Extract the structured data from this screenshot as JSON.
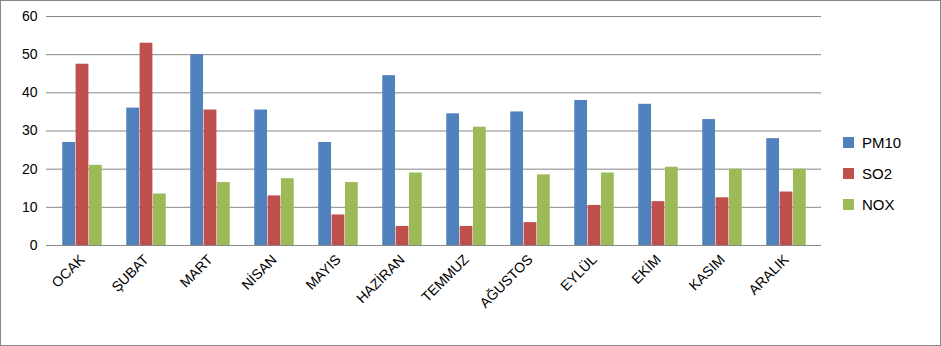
{
  "chart_data": {
    "type": "bar",
    "categories": [
      "OCAK",
      "ŞUBAT",
      "MART",
      "NİSAN",
      "MAYIS",
      "HAZİRAN",
      "TEMMUZ",
      "AĞUSTOS",
      "EYLÜL",
      "EKİM",
      "KASIM",
      "ARALIK"
    ],
    "series": [
      {
        "name": "PM10",
        "color": "#4F81BD",
        "values": [
          27,
          36,
          50,
          35.5,
          27,
          44.5,
          34.5,
          35,
          38,
          37,
          33,
          28
        ]
      },
      {
        "name": "SO2",
        "color": "#C0504D",
        "values": [
          47.5,
          53,
          35.5,
          13,
          8,
          5,
          5,
          6,
          10.5,
          11.5,
          12.5,
          14
        ]
      },
      {
        "name": "NOX",
        "color": "#9BBB59",
        "values": [
          21,
          13.5,
          16.5,
          17.5,
          16.5,
          19,
          31,
          18.5,
          19,
          20.5,
          20,
          20
        ]
      }
    ],
    "ylim": [
      0,
      60
    ],
    "yticks": [
      0,
      10,
      20,
      30,
      40,
      50,
      60
    ],
    "grid": true,
    "legend": "right"
  }
}
